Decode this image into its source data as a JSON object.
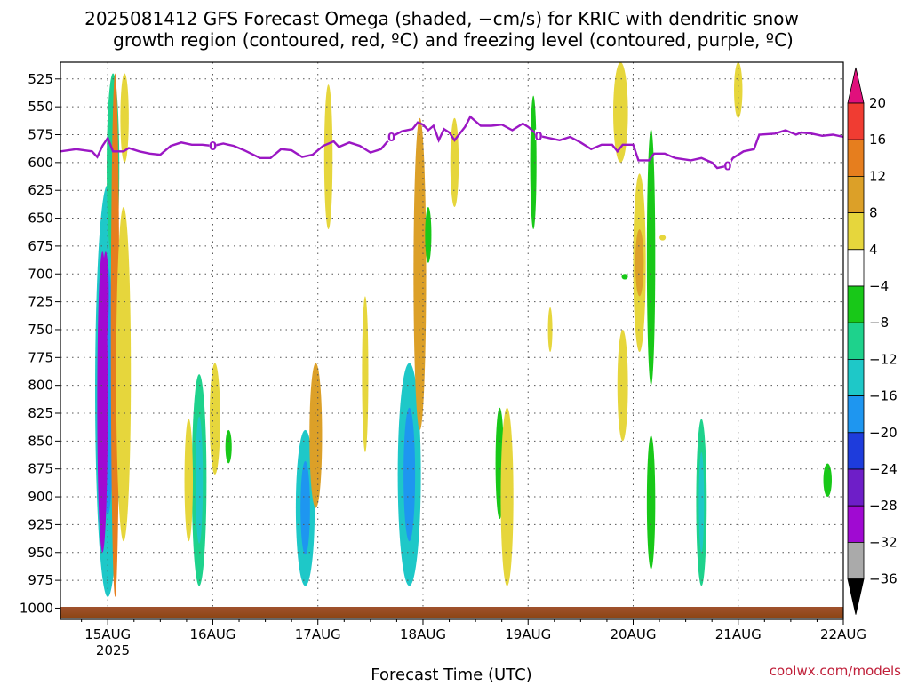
{
  "title_lines": [
    "2025081412 GFS Forecast Omega (shaded, −cm/s) for KRIC with dendritic snow",
    "growth region (contoured, red, ºC) and freezing level (contoured, purple, ºC)"
  ],
  "credit": "coolwx.com/models",
  "chart_data": {
    "type": "heatmap",
    "xlabel": "Forecast Time (UTC)",
    "ylabel": "",
    "x_ticks": [
      "15AUG",
      "16AUG",
      "17AUG",
      "18AUG",
      "19AUG",
      "20AUG",
      "21AUG",
      "22AUG"
    ],
    "x_sub_label": "2025",
    "x_range_days": [
      14.55,
      22.0
    ],
    "y_ticks": [
      525,
      550,
      575,
      600,
      625,
      650,
      675,
      700,
      725,
      750,
      775,
      800,
      825,
      850,
      875,
      900,
      925,
      950,
      975,
      1000
    ],
    "y_range": [
      510,
      1010
    ],
    "grid": true,
    "colorbar": {
      "labels": [
        "20",
        "16",
        "12",
        "8",
        "4",
        "−4",
        "−8",
        "−12",
        "−16",
        "−20",
        "−24",
        "−28",
        "−32",
        "−36"
      ],
      "colors": [
        "#e0107c",
        "#f03c32",
        "#e67e1e",
        "#dca028",
        "#e6d63c",
        "#ffffff",
        "#18c818",
        "#1ed28c",
        "#1ec8c8",
        "#1e96f0",
        "#1e3cdc",
        "#6e1ec8",
        "#a00ad2",
        "#aaaaaa",
        "#000000"
      ]
    },
    "freezing_level": {
      "label": "0",
      "color": "#9b17c4",
      "points": [
        [
          14.55,
          590
        ],
        [
          14.7,
          588
        ],
        [
          14.85,
          590
        ],
        [
          14.9,
          595
        ],
        [
          14.95,
          585
        ],
        [
          15.0,
          578
        ],
        [
          15.05,
          590
        ],
        [
          15.15,
          590
        ],
        [
          15.2,
          587
        ],
        [
          15.3,
          590
        ],
        [
          15.4,
          592
        ],
        [
          15.5,
          593
        ],
        [
          15.6,
          585
        ],
        [
          15.7,
          582
        ],
        [
          15.8,
          584
        ],
        [
          15.9,
          584
        ],
        [
          16.0,
          585
        ],
        [
          16.1,
          583
        ],
        [
          16.2,
          585
        ],
        [
          16.3,
          589
        ],
        [
          16.45,
          596
        ],
        [
          16.55,
          596
        ],
        [
          16.65,
          588
        ],
        [
          16.75,
          589
        ],
        [
          16.85,
          595
        ],
        [
          16.95,
          593
        ],
        [
          17.05,
          585
        ],
        [
          17.15,
          581
        ],
        [
          17.2,
          586
        ],
        [
          17.3,
          582
        ],
        [
          17.4,
          585
        ],
        [
          17.5,
          591
        ],
        [
          17.6,
          588
        ],
        [
          17.7,
          577
        ],
        [
          17.8,
          572
        ],
        [
          17.9,
          570
        ],
        [
          17.95,
          564
        ],
        [
          18.0,
          566
        ],
        [
          18.05,
          571
        ],
        [
          18.1,
          567
        ],
        [
          18.15,
          580
        ],
        [
          18.2,
          570
        ],
        [
          18.25,
          573
        ],
        [
          18.3,
          580
        ],
        [
          18.4,
          568
        ],
        [
          18.45,
          559
        ],
        [
          18.55,
          567
        ],
        [
          18.65,
          567
        ],
        [
          18.75,
          566
        ],
        [
          18.85,
          571
        ],
        [
          18.95,
          565
        ],
        [
          19.0,
          568
        ],
        [
          19.1,
          576
        ],
        [
          19.2,
          578
        ],
        [
          19.3,
          580
        ],
        [
          19.4,
          577
        ],
        [
          19.5,
          582
        ],
        [
          19.6,
          588
        ],
        [
          19.7,
          584
        ],
        [
          19.8,
          584
        ],
        [
          19.85,
          590
        ],
        [
          19.9,
          584
        ],
        [
          20.0,
          584
        ],
        [
          20.05,
          598
        ],
        [
          20.15,
          598
        ],
        [
          20.2,
          592
        ],
        [
          20.3,
          592
        ],
        [
          20.4,
          596
        ],
        [
          20.55,
          598
        ],
        [
          20.65,
          596
        ],
        [
          20.75,
          600
        ],
        [
          20.8,
          605
        ],
        [
          20.9,
          603
        ],
        [
          20.95,
          596
        ],
        [
          21.05,
          590
        ],
        [
          21.15,
          588
        ],
        [
          21.2,
          575
        ],
        [
          21.35,
          574
        ],
        [
          21.45,
          571
        ],
        [
          21.55,
          575
        ],
        [
          21.6,
          573
        ],
        [
          21.7,
          574
        ],
        [
          21.8,
          576
        ],
        [
          21.9,
          575
        ],
        [
          22.0,
          577
        ]
      ]
    },
    "omega_regions": [
      {
        "cx": 15.0,
        "p0": 620,
        "p1": 990,
        "rx": 0.12,
        "level": -12
      },
      {
        "cx": 14.95,
        "p0": 680,
        "p1": 950,
        "rx": 0.05,
        "level": -28
      },
      {
        "cx": 15.05,
        "p0": 520,
        "p1": 690,
        "rx": 0.06,
        "level": -8
      },
      {
        "cx": 14.98,
        "p0": 680,
        "p1": 760,
        "rx": 0.03,
        "level": -32
      },
      {
        "cx": 15.07,
        "p0": 520,
        "p1": 990,
        "rx": 0.04,
        "level": 14
      },
      {
        "cx": 15.16,
        "p0": 520,
        "p1": 600,
        "rx": 0.04,
        "level": 6
      },
      {
        "cx": 15.15,
        "p0": 640,
        "p1": 940,
        "rx": 0.07,
        "level": 6
      },
      {
        "cx": 15.87,
        "p0": 790,
        "p1": 980,
        "rx": 0.07,
        "level": -10
      },
      {
        "cx": 16.02,
        "p0": 780,
        "p1": 880,
        "rx": 0.05,
        "level": 6
      },
      {
        "cx": 15.77,
        "p0": 830,
        "p1": 940,
        "rx": 0.04,
        "level": 6
      },
      {
        "cx": 16.15,
        "p0": 840,
        "p1": 870,
        "rx": 0.03,
        "level": -6
      },
      {
        "cx": 16.88,
        "p0": 840,
        "p1": 980,
        "rx": 0.09,
        "level": -12
      },
      {
        "cx": 16.98,
        "p0": 780,
        "p1": 910,
        "rx": 0.06,
        "level": 9
      },
      {
        "cx": 17.1,
        "p0": 530,
        "p1": 660,
        "rx": 0.04,
        "level": 6
      },
      {
        "cx": 17.45,
        "p0": 720,
        "p1": 860,
        "rx": 0.03,
        "level": 5
      },
      {
        "cx": 17.87,
        "p0": 780,
        "p1": 980,
        "rx": 0.11,
        "level": -14
      },
      {
        "cx": 17.97,
        "p0": 560,
        "p1": 840,
        "rx": 0.06,
        "level": 9
      },
      {
        "cx": 18.05,
        "p0": 640,
        "p1": 690,
        "rx": 0.03,
        "level": -6
      },
      {
        "cx": 18.3,
        "p0": 560,
        "p1": 640,
        "rx": 0.04,
        "level": 6
      },
      {
        "cx": 18.73,
        "p0": 820,
        "p1": 920,
        "rx": 0.04,
        "level": -6
      },
      {
        "cx": 18.8,
        "p0": 820,
        "p1": 980,
        "rx": 0.06,
        "level": 6
      },
      {
        "cx": 19.05,
        "p0": 540,
        "p1": 660,
        "rx": 0.03,
        "level": -6
      },
      {
        "cx": 19.21,
        "p0": 730,
        "p1": 770,
        "rx": 0.02,
        "level": 5
      },
      {
        "cx": 19.88,
        "p0": 510,
        "p1": 600,
        "rx": 0.07,
        "level": 5
      },
      {
        "cx": 19.9,
        "p0": 750,
        "p1": 850,
        "rx": 0.05,
        "level": 5
      },
      {
        "cx": 20.06,
        "p0": 610,
        "p1": 770,
        "rx": 0.06,
        "level": 7
      },
      {
        "cx": 20.06,
        "p0": 660,
        "p1": 720,
        "rx": 0.04,
        "level": 10
      },
      {
        "cx": 19.92,
        "p0": 700,
        "p1": 705,
        "rx": 0.03,
        "level": -6
      },
      {
        "cx": 20.17,
        "p0": 570,
        "p1": 800,
        "rx": 0.04,
        "level": -6
      },
      {
        "cx": 20.17,
        "p0": 845,
        "p1": 965,
        "rx": 0.04,
        "level": -6
      },
      {
        "cx": 20.28,
        "p0": 665,
        "p1": 670,
        "rx": 0.03,
        "level": 5
      },
      {
        "cx": 20.65,
        "p0": 830,
        "p1": 980,
        "rx": 0.05,
        "level": -10
      },
      {
        "cx": 21.0,
        "p0": 510,
        "p1": 560,
        "rx": 0.04,
        "level": 5
      },
      {
        "cx": 21.85,
        "p0": 870,
        "p1": 900,
        "rx": 0.04,
        "level": -6
      }
    ]
  }
}
